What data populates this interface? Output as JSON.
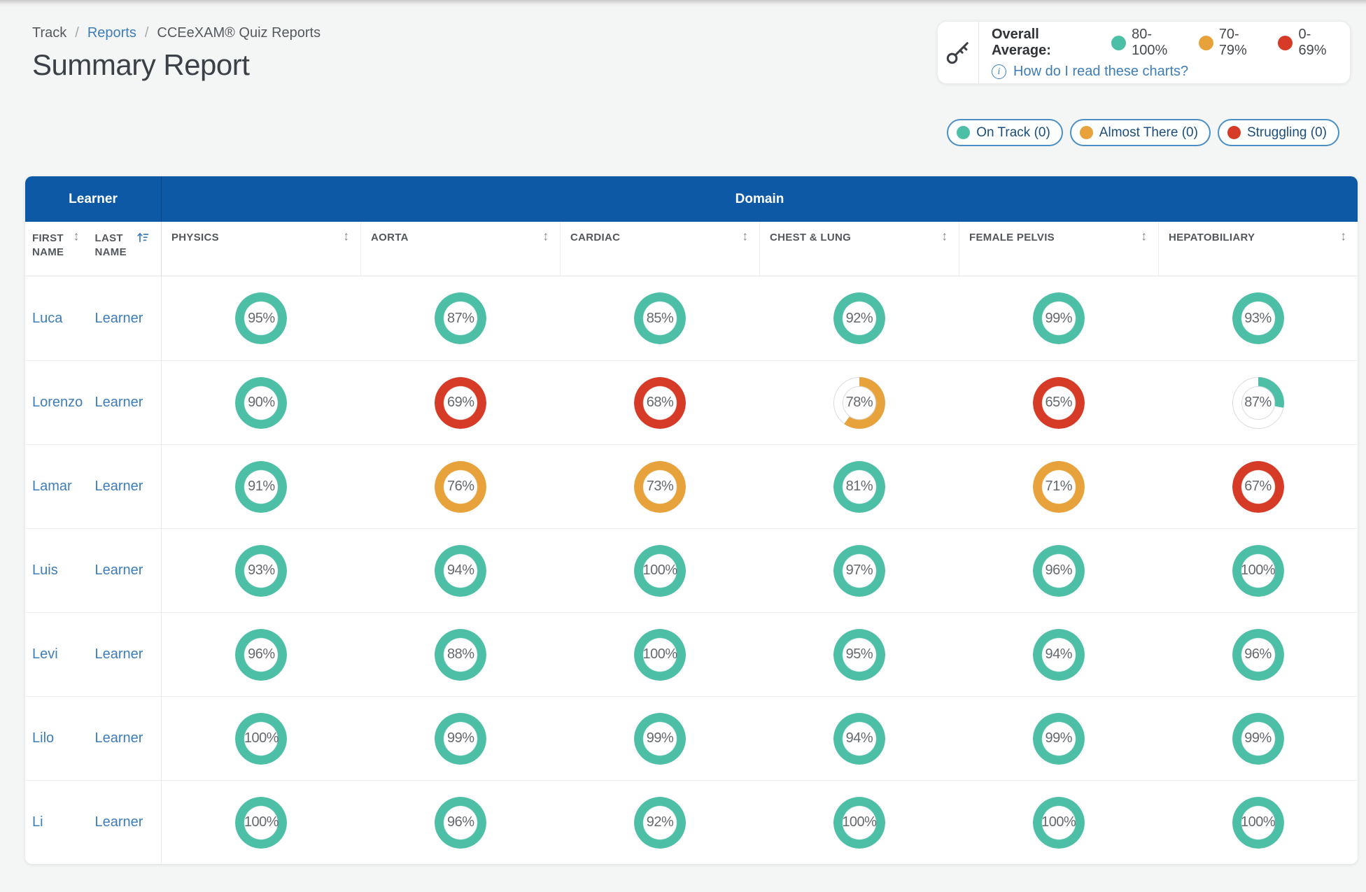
{
  "breadcrumb": {
    "separator": "/",
    "items": [
      {
        "label": "Track",
        "link": false
      },
      {
        "label": "Reports",
        "link": true
      },
      {
        "label": "CCEeXAM® Quiz Reports",
        "link": false
      }
    ]
  },
  "title": "Summary Report",
  "legend": {
    "heading": "Overall Average:",
    "items": [
      {
        "label": "80-100%",
        "color": "#4dbfa6"
      },
      {
        "label": "70-79%",
        "color": "#e8a23c"
      },
      {
        "label": "0-69%",
        "color": "#d53b27"
      }
    ],
    "help_link": "How do I read these charts?"
  },
  "filters": [
    {
      "label": "On Track (0)",
      "color": "#4dbfa6"
    },
    {
      "label": "Almost There (0)",
      "color": "#e8a23c"
    },
    {
      "label": "Struggling (0)",
      "color": "#d53b27"
    }
  ],
  "colors": {
    "teal": "#4dbfa6",
    "orange": "#e8a23c",
    "red": "#d53b27",
    "header_blue": "#0e59a5",
    "link_blue": "#3e7db6"
  },
  "table": {
    "group_headers": {
      "learner": "Learner",
      "domain": "Domain"
    },
    "learner_columns": [
      {
        "label": "FIRST NAME",
        "sort": "inactive"
      },
      {
        "label": "LAST NAME",
        "sort": "active"
      }
    ],
    "domain_columns": [
      "PHYSICS",
      "AORTA",
      "CARDIAC",
      "CHEST & LUNG",
      "FEMALE PELVIS",
      "HEPATOBILIARY"
    ],
    "rows": [
      {
        "first": "Luca",
        "last": "Learner",
        "scores": [
          {
            "display": "95%",
            "color": "teal",
            "fill": 1
          },
          {
            "display": "87%",
            "color": "teal",
            "fill": 1
          },
          {
            "display": "85%",
            "color": "teal",
            "fill": 1
          },
          {
            "display": "92%",
            "color": "teal",
            "fill": 1
          },
          {
            "display": "99%",
            "color": "teal",
            "fill": 1
          },
          {
            "display": "93%",
            "color": "teal",
            "fill": 1
          }
        ]
      },
      {
        "first": "Lorenzo",
        "last": "Learner",
        "scores": [
          {
            "display": "90%",
            "color": "teal",
            "fill": 1
          },
          {
            "display": "69%",
            "color": "red",
            "fill": 1
          },
          {
            "display": "68%",
            "color": "red",
            "fill": 1
          },
          {
            "display": "78%",
            "color": "orange",
            "fill": 0.6
          },
          {
            "display": "65%",
            "color": "red",
            "fill": 1
          },
          {
            "display": "87%",
            "color": "teal",
            "fill": 0.28
          }
        ]
      },
      {
        "first": "Lamar",
        "last": "Learner",
        "scores": [
          {
            "display": "91%",
            "color": "teal",
            "fill": 1
          },
          {
            "display": "76%",
            "color": "orange",
            "fill": 1
          },
          {
            "display": "73%",
            "color": "orange",
            "fill": 1
          },
          {
            "display": "81%",
            "color": "teal",
            "fill": 1
          },
          {
            "display": "71%",
            "color": "orange",
            "fill": 1
          },
          {
            "display": "67%",
            "color": "red",
            "fill": 1
          }
        ]
      },
      {
        "first": "Luis",
        "last": "Learner",
        "scores": [
          {
            "display": "93%",
            "color": "teal",
            "fill": 1
          },
          {
            "display": "94%",
            "color": "teal",
            "fill": 1
          },
          {
            "display": "100%",
            "color": "teal",
            "fill": 1
          },
          {
            "display": "97%",
            "color": "teal",
            "fill": 1
          },
          {
            "display": "96%",
            "color": "teal",
            "fill": 1
          },
          {
            "display": "100%",
            "color": "teal",
            "fill": 1
          }
        ]
      },
      {
        "first": "Levi",
        "last": "Learner",
        "scores": [
          {
            "display": "96%",
            "color": "teal",
            "fill": 1
          },
          {
            "display": "88%",
            "color": "teal",
            "fill": 1
          },
          {
            "display": "100%",
            "color": "teal",
            "fill": 1
          },
          {
            "display": "95%",
            "color": "teal",
            "fill": 1
          },
          {
            "display": "94%",
            "color": "teal",
            "fill": 1
          },
          {
            "display": "96%",
            "color": "teal",
            "fill": 1
          }
        ]
      },
      {
        "first": "Lilo",
        "last": "Learner",
        "scores": [
          {
            "display": "100%",
            "color": "teal",
            "fill": 1
          },
          {
            "display": "99%",
            "color": "teal",
            "fill": 1
          },
          {
            "display": "99%",
            "color": "teal",
            "fill": 1
          },
          {
            "display": "94%",
            "color": "teal",
            "fill": 1
          },
          {
            "display": "99%",
            "color": "teal",
            "fill": 1
          },
          {
            "display": "99%",
            "color": "teal",
            "fill": 1
          }
        ]
      },
      {
        "first": "Li",
        "last": "Learner",
        "scores": [
          {
            "display": "100%",
            "color": "teal",
            "fill": 1
          },
          {
            "display": "96%",
            "color": "teal",
            "fill": 1
          },
          {
            "display": "92%",
            "color": "teal",
            "fill": 1
          },
          {
            "display": "100%",
            "color": "teal",
            "fill": 1
          },
          {
            "display": "100%",
            "color": "teal",
            "fill": 1
          },
          {
            "display": "100%",
            "color": "teal",
            "fill": 1
          }
        ]
      }
    ]
  }
}
